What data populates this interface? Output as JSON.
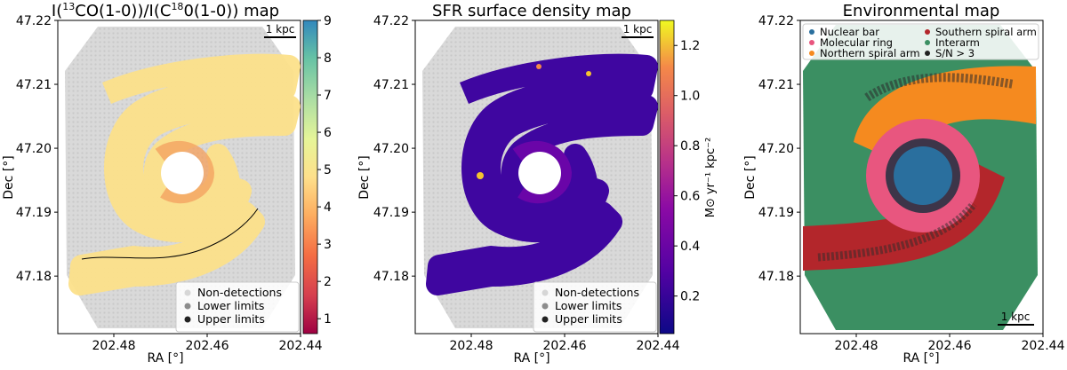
{
  "chart_data": [
    {
      "type": "heatmap",
      "title_prefix": "I(",
      "title_sup1": "13",
      "title_mid": "CO(1-0))/I(C",
      "title_sup2": "18",
      "title_suffix": "0(1-0)) map",
      "xlabel": "RA [°]",
      "ylabel": "Dec [°]",
      "xticks": [
        "202.48",
        "202.46",
        "202.44"
      ],
      "yticks": [
        "47.22",
        "47.21",
        "47.20",
        "47.19",
        "47.18"
      ],
      "xlim": [
        202.492,
        202.44
      ],
      "ylim": [
        47.171,
        47.22
      ],
      "scalebar_label": "1 kpc",
      "colorbar": {
        "cmap": "Spectral",
        "min": 0.6,
        "max": 9.0,
        "ticks": [
          "1",
          "2",
          "3",
          "4",
          "5",
          "6",
          "7",
          "8",
          "9"
        ],
        "label": ""
      },
      "legend": [
        "Non-detections",
        "Lower limits",
        "Upper limits"
      ],
      "legend_colors": [
        "#d6d6d6",
        "#8c8c8c",
        "#222222"
      ]
    },
    {
      "type": "heatmap",
      "title": "SFR surface density map",
      "xlabel": "RA [°]",
      "ylabel": "Dec [°]",
      "xticks": [
        "202.48",
        "202.46",
        "202.44"
      ],
      "yticks": [
        "47.22",
        "47.21",
        "47.20",
        "47.19",
        "47.18"
      ],
      "xlim": [
        202.492,
        202.44
      ],
      "ylim": [
        47.171,
        47.22
      ],
      "scalebar_label": "1 kpc",
      "colorbar": {
        "cmap": "plasma",
        "min": 0.05,
        "max": 1.3,
        "ticks": [
          "0.2",
          "0.4",
          "0.6",
          "0.8",
          "1.0",
          "1.2"
        ],
        "label": "M⊙ yr⁻¹ kpc⁻²"
      },
      "legend": [
        "Non-detections",
        "Lower limits",
        "Upper limits"
      ],
      "legend_colors": [
        "#d6d6d6",
        "#8c8c8c",
        "#222222"
      ]
    },
    {
      "type": "heatmap",
      "title": "Environmental map",
      "xlabel": "RA [°]",
      "ylabel": "Dec [°]",
      "xticks": [
        "202.48",
        "202.46",
        "202.44"
      ],
      "yticks": [
        "47.22",
        "47.21",
        "47.20",
        "47.19",
        "47.18"
      ],
      "xlim": [
        202.492,
        202.44
      ],
      "ylim": [
        47.171,
        47.22
      ],
      "scalebar_label": "1 kpc",
      "legend": [
        "Nuclear bar",
        "Molecular ring",
        "Northern spiral arm",
        "Southern spiral arm",
        "Interarm",
        "S/N > 3"
      ],
      "legend_colors": [
        "#2a6f9e",
        "#e8567f",
        "#f58a1f",
        "#b3262b",
        "#3b8f62",
        "#222222"
      ]
    }
  ]
}
